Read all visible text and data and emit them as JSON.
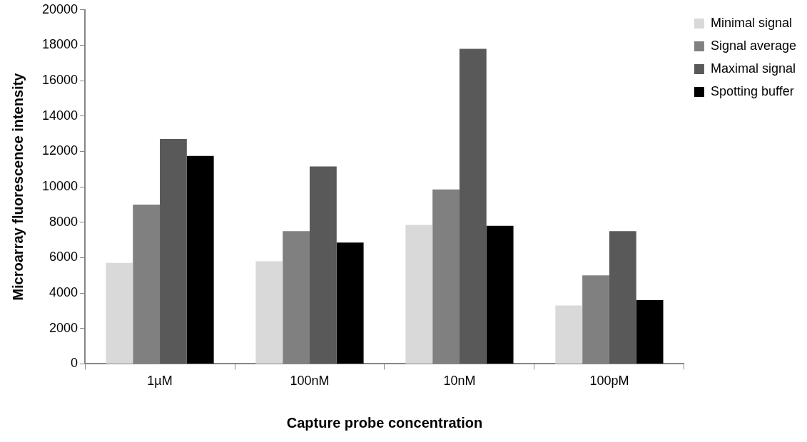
{
  "chart_data": {
    "type": "bar",
    "xlabel": "Capture probe concentration",
    "ylabel": "Microarray fluorescence intensity",
    "categories": [
      "1µM",
      "100nM",
      "10nM",
      "100pM"
    ],
    "series": [
      {
        "name": "Minimal signal",
        "color": "#d9d9d9",
        "values": [
          5700,
          5800,
          7850,
          3300
        ]
      },
      {
        "name": "Signal average",
        "color": "#808080",
        "values": [
          9000,
          7500,
          9850,
          5000
        ]
      },
      {
        "name": "Maximal signal",
        "color": "#595959",
        "values": [
          12700,
          11150,
          17800,
          7500
        ]
      },
      {
        "name": "Spotting buffer",
        "color": "#000000",
        "values": [
          11750,
          6850,
          7800,
          3600
        ]
      }
    ],
    "ylim": [
      0,
      20000
    ],
    "yticks": [
      0,
      2000,
      4000,
      6000,
      8000,
      10000,
      12000,
      14000,
      16000,
      18000,
      20000
    ],
    "grid": false,
    "legend": "top right"
  }
}
